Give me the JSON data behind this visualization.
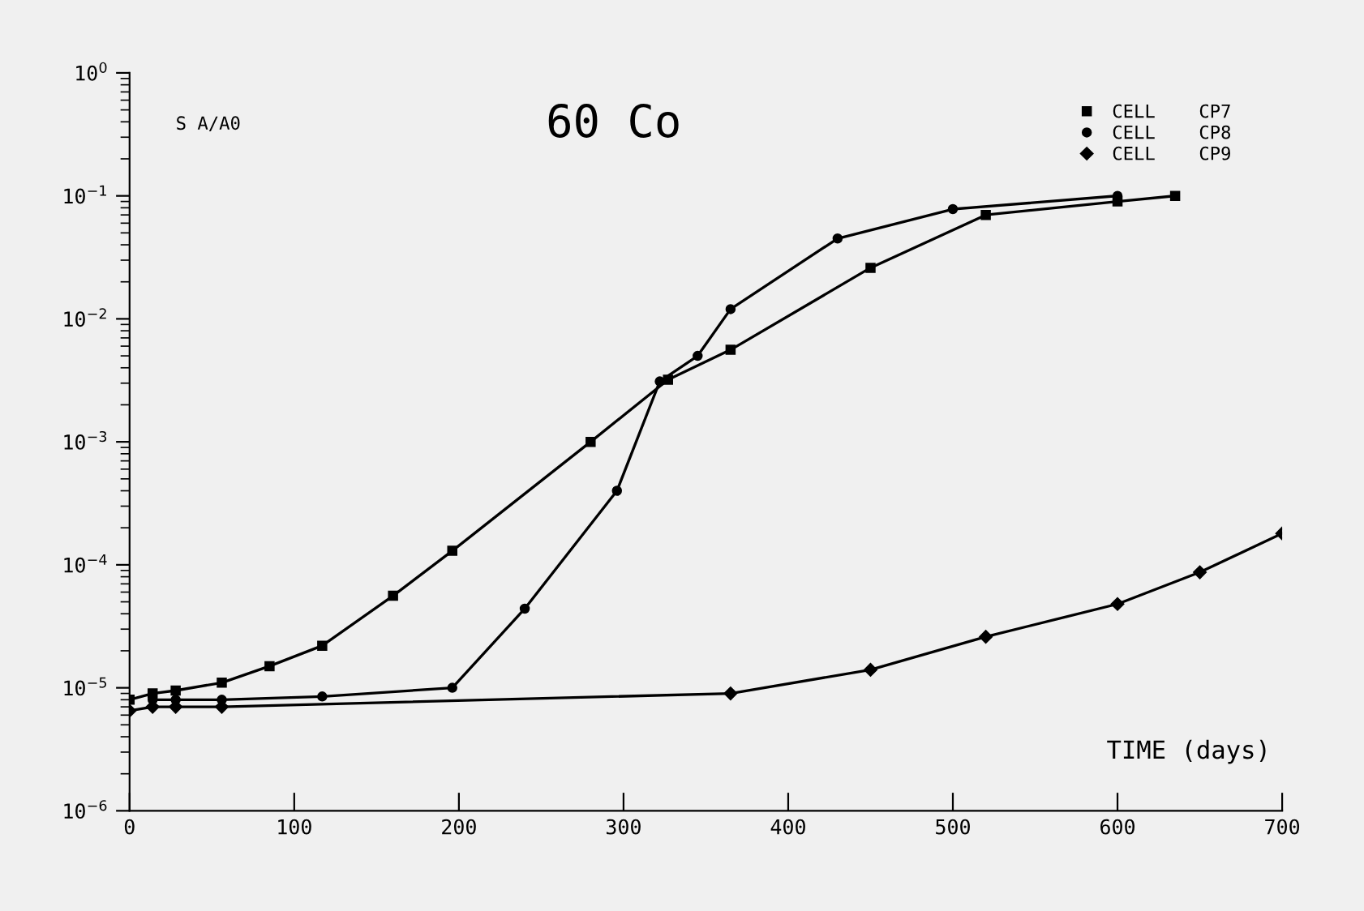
{
  "chart_data": {
    "type": "line",
    "title": "60 Co",
    "xlabel": "TIME (days)",
    "annotations": [
      "S A/A0"
    ],
    "xlim": [
      0,
      700
    ],
    "xticks": [
      0,
      100,
      200,
      300,
      400,
      500,
      600,
      700
    ],
    "ylim": [
      1e-06,
      1
    ],
    "log": true,
    "yticks": [
      {
        "value": 1e-06,
        "label": "10$^{−6}$"
      },
      {
        "value": 1e-05,
        "label": "10$^{−5}$"
      },
      {
        "value": 0.0001,
        "label": "10$^{−4}$"
      },
      {
        "value": 0.001,
        "label": "10$^{−3}$"
      },
      {
        "value": 0.01,
        "label": "10$^{−2}$"
      },
      {
        "value": 0.1,
        "label": "10$^{−1}$"
      },
      {
        "value": 1,
        "label": "10$^{0}$"
      }
    ],
    "grid": false,
    "legend": "top right",
    "series": [
      {
        "name": "CELL    CP7",
        "color": "#000000",
        "marker": "square",
        "x": [
          0,
          14,
          28,
          56,
          85,
          117,
          160,
          196,
          280,
          327,
          365,
          450,
          520,
          600,
          635
        ],
        "values": [
          8e-06,
          9e-06,
          9.5e-06,
          1.1e-05,
          1.5e-05,
          2.2e-05,
          5.6e-05,
          0.00013,
          0.001,
          0.0032,
          0.0056,
          0.026,
          0.07,
          0.09,
          0.1
        ]
      },
      {
        "name": "CELL    CP8",
        "color": "#000000",
        "marker": "circle",
        "x": [
          14,
          28,
          56,
          117,
          196,
          240,
          296,
          322,
          345,
          365,
          430,
          500,
          600
        ],
        "values": [
          8e-06,
          8e-06,
          8e-06,
          8.5e-06,
          1e-05,
          4.4e-05,
          0.0004,
          0.0031,
          0.005,
          0.012,
          0.045,
          0.078,
          0.1
        ]
      },
      {
        "name": "CELL    CP9",
        "color": "#000000",
        "marker": "diamond",
        "x": [
          0,
          14,
          28,
          56,
          365,
          450,
          520,
          600,
          650,
          700
        ],
        "values": [
          6.5e-06,
          7e-06,
          7e-06,
          7e-06,
          9e-06,
          1.4e-05,
          2.6e-05,
          4.8e-05,
          8.7e-05,
          0.00018
        ]
      }
    ]
  }
}
